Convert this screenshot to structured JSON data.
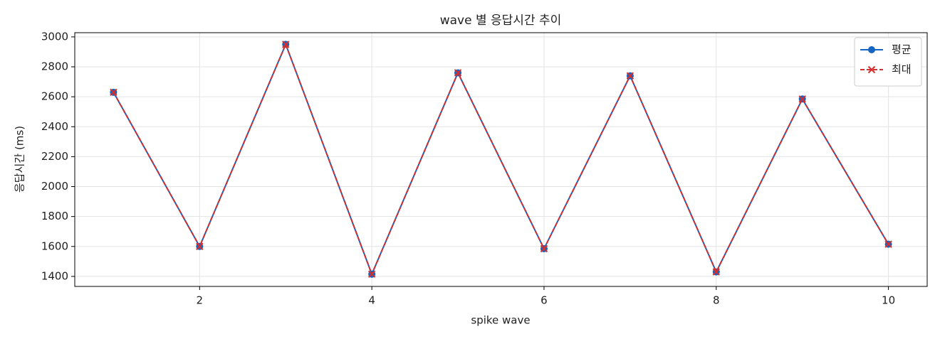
{
  "chart_data": {
    "type": "line",
    "title": "wave 별 응답시간 추이",
    "x_label": "spike wave",
    "y_label": "응답시간 (ms)",
    "x": [
      1,
      2,
      3,
      4,
      5,
      6,
      7,
      8,
      9,
      10
    ],
    "series": [
      {
        "name": "평균",
        "color": "#1565c0",
        "marker": "circle",
        "linestyle": "solid",
        "values": [
          2630,
          1600,
          2950,
          1415,
          2760,
          1585,
          2740,
          1430,
          2585,
          1615
        ]
      },
      {
        "name": "최대",
        "color": "#d32f2f",
        "marker": "x",
        "linestyle": "dashed",
        "values": [
          2630,
          1600,
          2950,
          1415,
          2760,
          1585,
          2740,
          1430,
          2585,
          1615
        ]
      }
    ],
    "xlim": [
      0.55,
      10.45
    ],
    "ylim": [
      1333,
      3028
    ],
    "xticks": [
      2,
      4,
      6,
      8,
      10
    ],
    "yticks": [
      1400,
      1600,
      1800,
      2000,
      2200,
      2400,
      2600,
      2800,
      3000
    ],
    "grid": true,
    "legend": "upper right"
  }
}
